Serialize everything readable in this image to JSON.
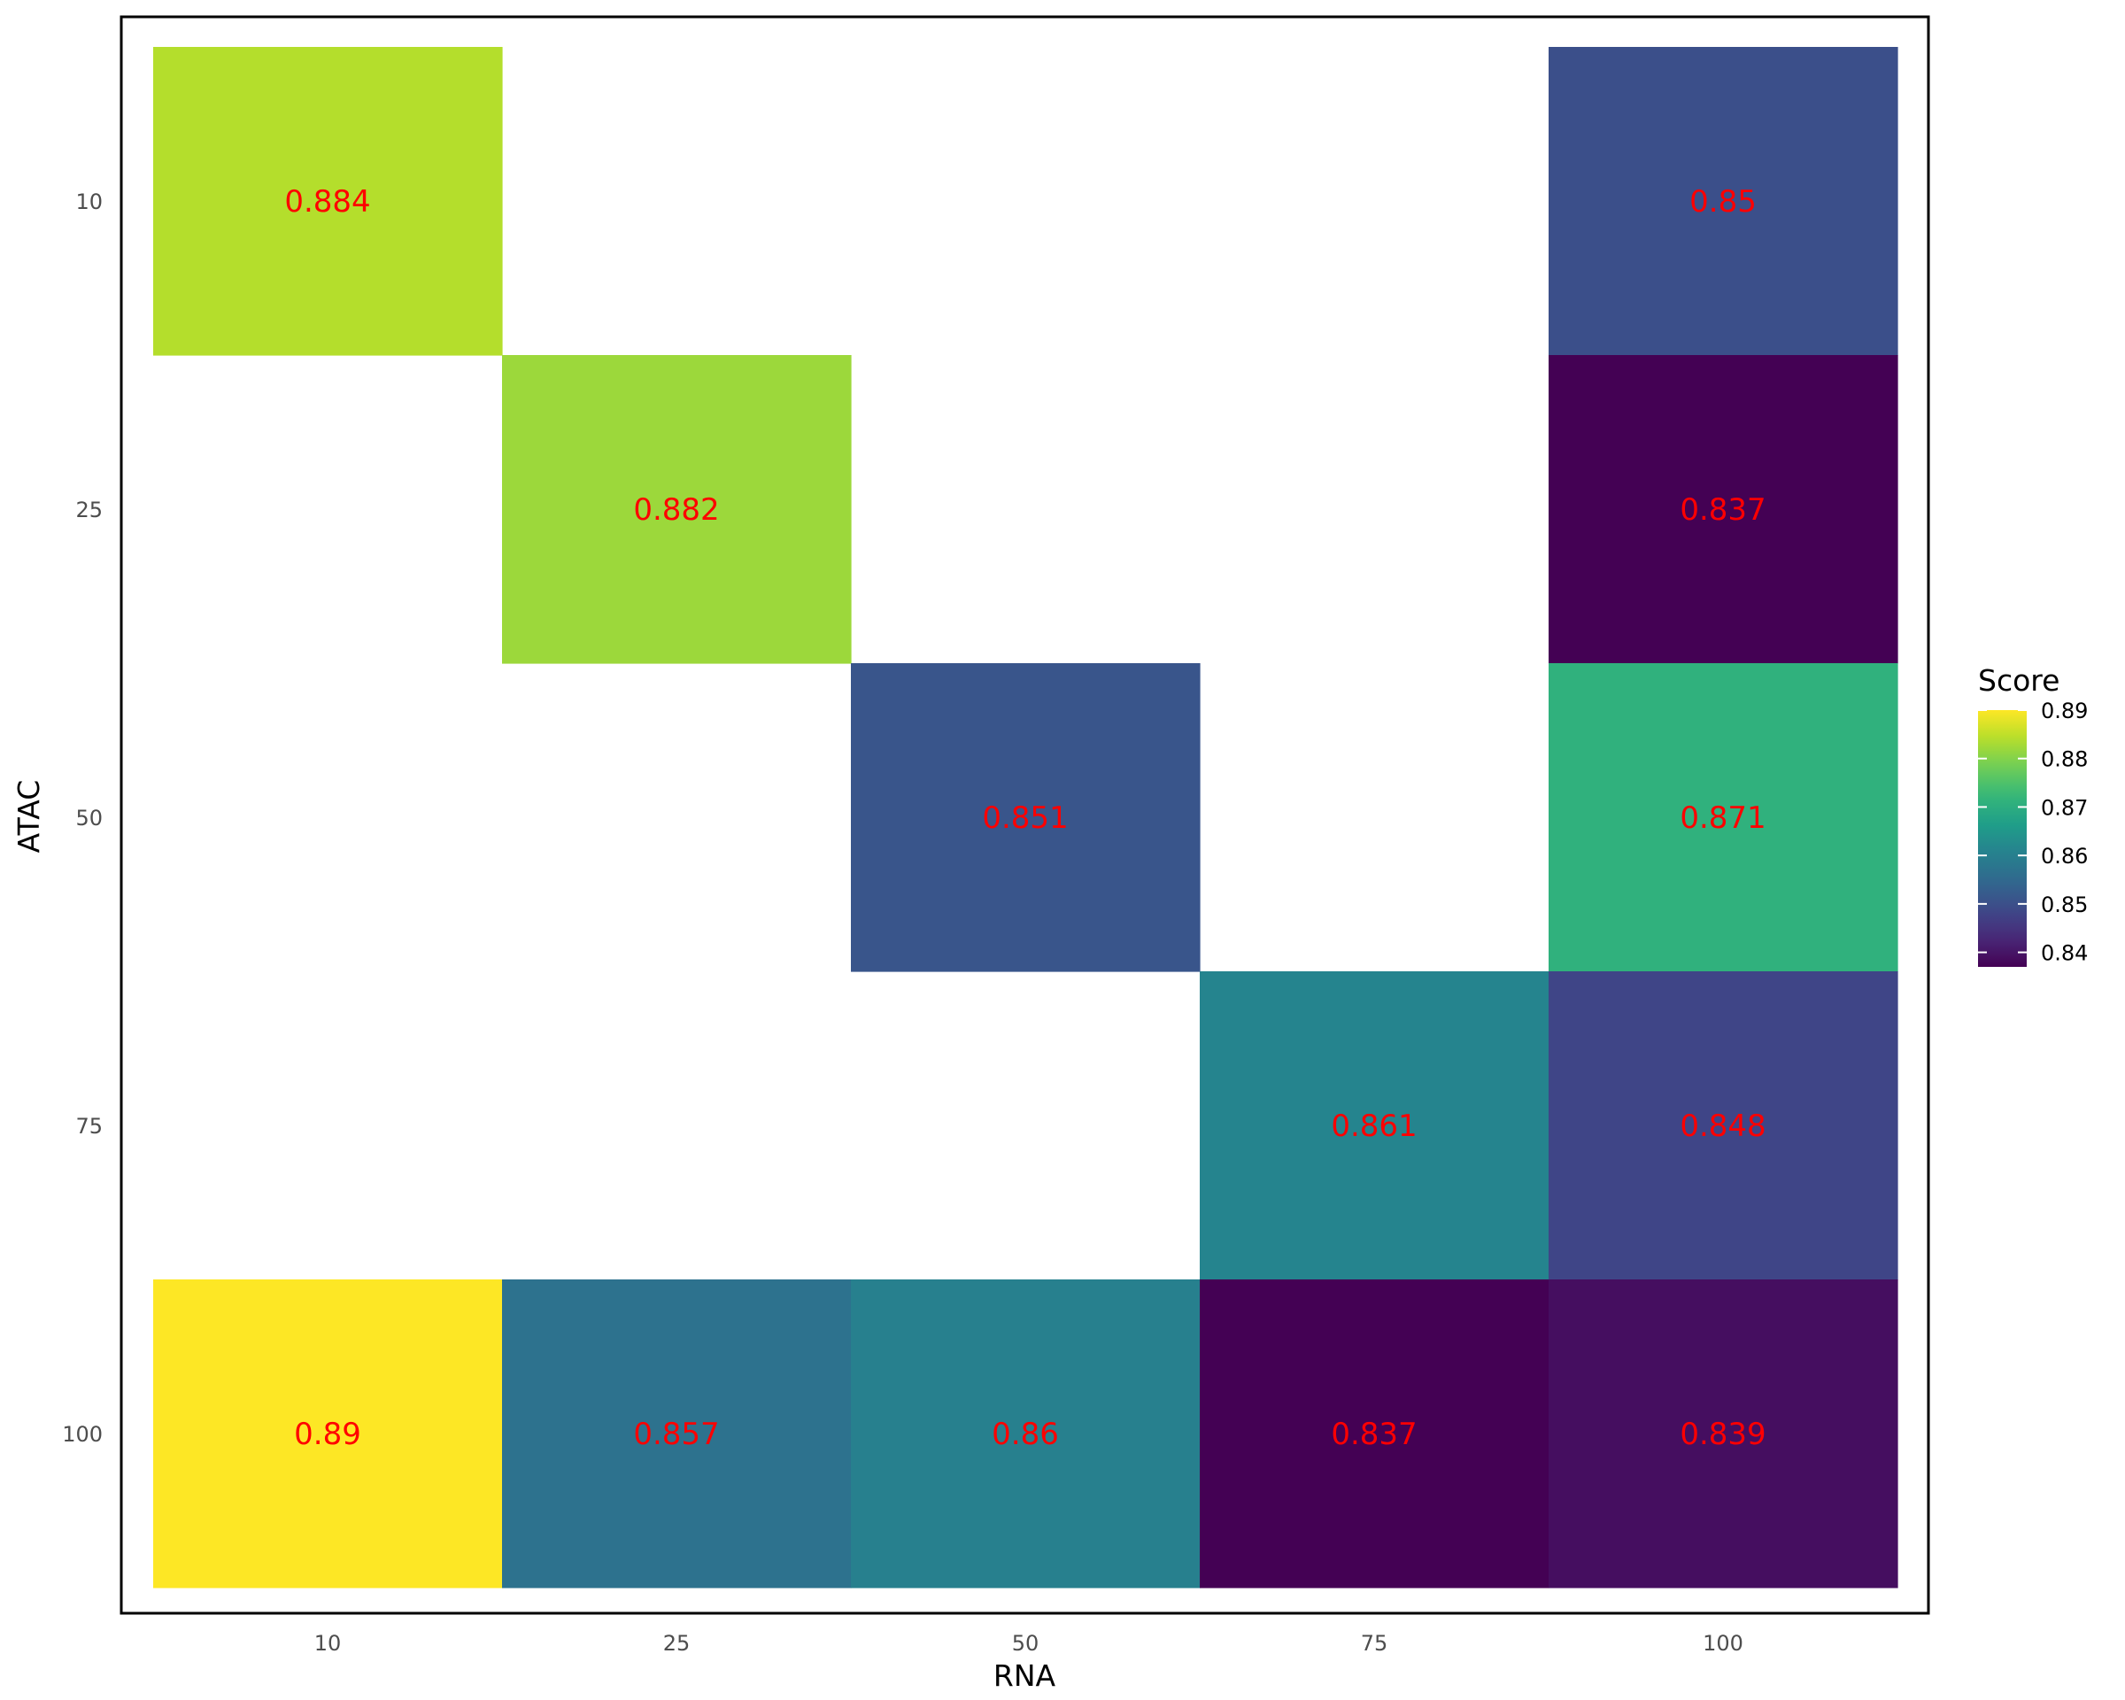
{
  "chart_data": {
    "type": "heatmap",
    "xlabel": "RNA",
    "ylabel": "ATAC",
    "x_categories": [
      "10",
      "25",
      "50",
      "75",
      "100"
    ],
    "y_categories": [
      "10",
      "25",
      "50",
      "75",
      "100"
    ],
    "cells": [
      {
        "x": "10",
        "y": "10",
        "value": 0.884,
        "label": "0.884"
      },
      {
        "x": "100",
        "y": "10",
        "value": 0.85,
        "label": "0.85"
      },
      {
        "x": "25",
        "y": "25",
        "value": 0.882,
        "label": "0.882"
      },
      {
        "x": "100",
        "y": "25",
        "value": 0.837,
        "label": "0.837"
      },
      {
        "x": "50",
        "y": "50",
        "value": 0.851,
        "label": "0.851"
      },
      {
        "x": "100",
        "y": "50",
        "value": 0.871,
        "label": "0.871"
      },
      {
        "x": "75",
        "y": "75",
        "value": 0.861,
        "label": "0.861"
      },
      {
        "x": "100",
        "y": "75",
        "value": 0.848,
        "label": "0.848"
      },
      {
        "x": "10",
        "y": "100",
        "value": 0.89,
        "label": "0.89"
      },
      {
        "x": "25",
        "y": "100",
        "value": 0.857,
        "label": "0.857"
      },
      {
        "x": "50",
        "y": "100",
        "value": 0.86,
        "label": "0.86"
      },
      {
        "x": "75",
        "y": "100",
        "value": 0.837,
        "label": "0.837"
      },
      {
        "x": "100",
        "y": "100",
        "value": 0.839,
        "label": "0.839"
      }
    ],
    "legend": {
      "title": "Score",
      "placement": "right",
      "range": [
        0.837,
        0.89
      ],
      "ticks": [
        {
          "value": 0.89,
          "label": "0.89"
        },
        {
          "value": 0.88,
          "label": "0.88"
        },
        {
          "value": 0.87,
          "label": "0.87"
        },
        {
          "value": 0.86,
          "label": "0.86"
        },
        {
          "value": 0.85,
          "label": "0.85"
        },
        {
          "value": 0.84,
          "label": "0.84"
        }
      ]
    },
    "colormap": "viridis",
    "label_color": "#ff0000",
    "grid": false
  }
}
